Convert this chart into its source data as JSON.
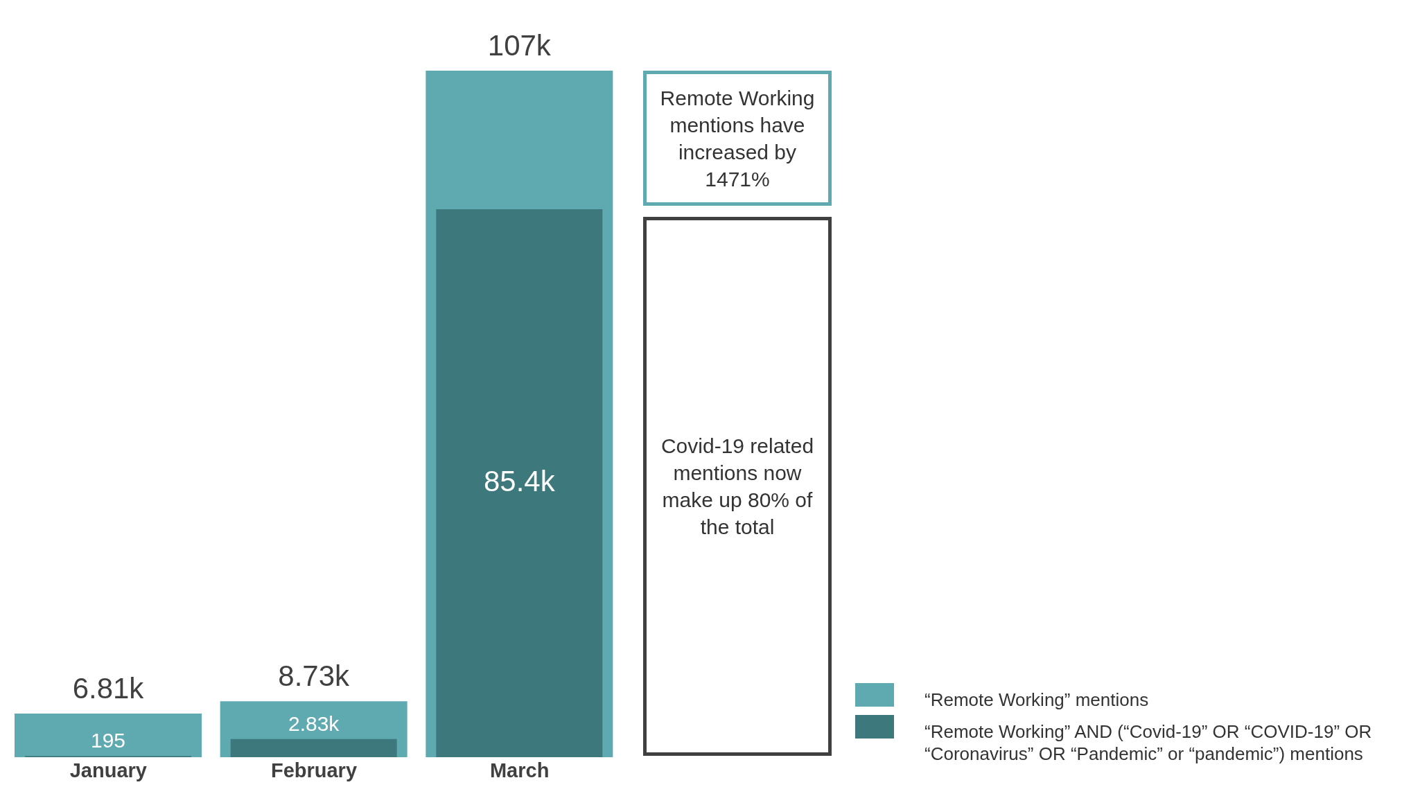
{
  "chart_data": {
    "type": "bar",
    "categories": [
      "January",
      "February",
      "March"
    ],
    "series": [
      {
        "name": "“Remote Working” mentions",
        "color": "#5faab0",
        "values": [
          6810,
          8730,
          107000
        ],
        "value_labels": [
          "6.81k",
          "8.73k",
          "107k"
        ]
      },
      {
        "name": "“Remote Working” AND (“Covid-19” OR “COVID-19” OR “Coronavirus” OR “Pandemic” or “pandemic”) mentions",
        "color": "#3c787c",
        "values": [
          195,
          2830,
          85400
        ],
        "value_labels": [
          "195",
          "2.83k",
          "85.4k"
        ]
      }
    ],
    "annotations": [
      "Remote Working mentions have increased by 1471%",
      "Covid-19 related mentions now make up 80% of the total"
    ],
    "legend": "bottom right"
  }
}
